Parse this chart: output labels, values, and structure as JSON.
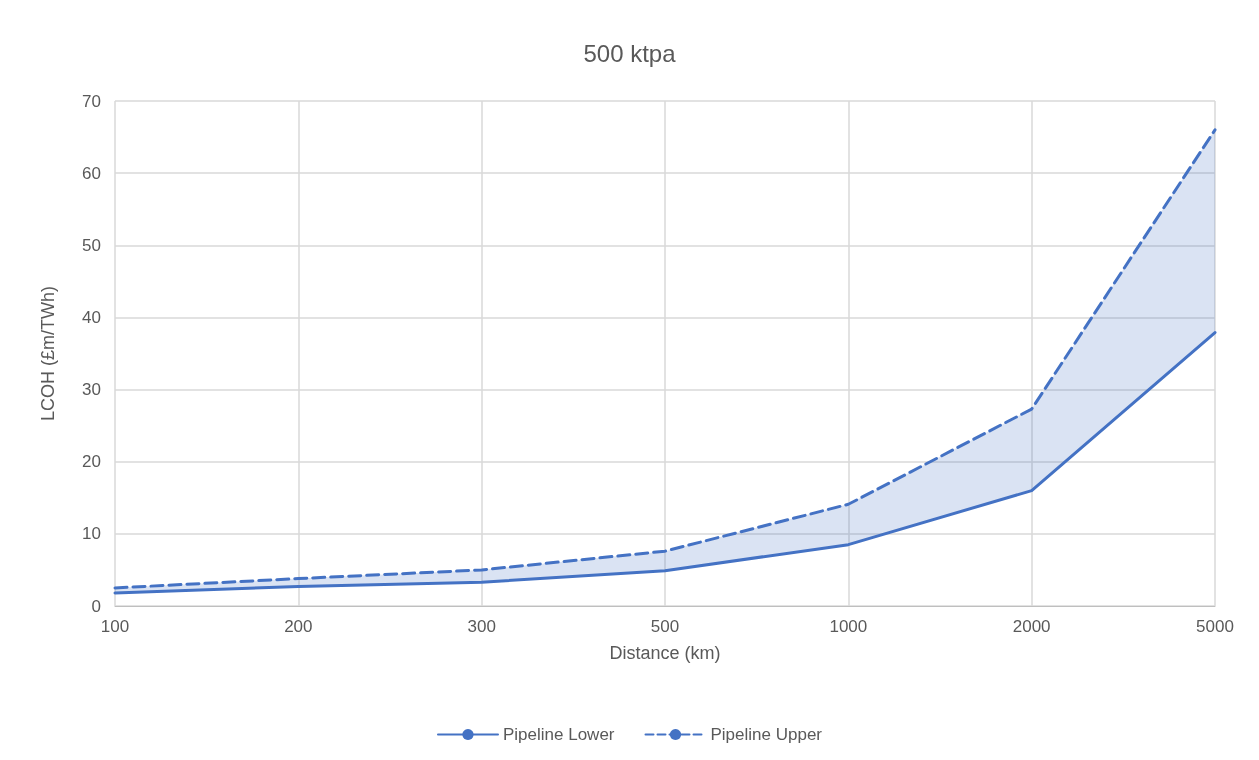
{
  "chart_data": {
    "type": "line",
    "title": "500 ktpa",
    "xlabel": "Distance (km)",
    "ylabel": "LCOH (£m/TWh)",
    "categories": [
      "100",
      "200",
      "300",
      "500",
      "1000",
      "2000",
      "5000"
    ],
    "ylim": [
      0,
      70
    ],
    "yticks": [
      0,
      10,
      20,
      30,
      40,
      50,
      60,
      70
    ],
    "grid": true,
    "legend": "bottom",
    "marker": "none",
    "series": [
      {
        "name": "Pipeline Lower",
        "color": "#4472c4",
        "line_style": "solid",
        "values": [
          1.8,
          2.7,
          3.3,
          4.9,
          8.5,
          16,
          37.9
        ]
      },
      {
        "name": "Pipeline Upper",
        "color": "#4472c4",
        "line_style": "dashed",
        "values": [
          2.5,
          3.8,
          5.0,
          7.6,
          14.1,
          27.3,
          66
        ],
        "lower": [
          1.8,
          2.7,
          3.3,
          4.9,
          8.5,
          16,
          37.9
        ],
        "upper": [
          2.5,
          3.8,
          5.0,
          7.6,
          14.1,
          27.3,
          66
        ]
      }
    ]
  }
}
